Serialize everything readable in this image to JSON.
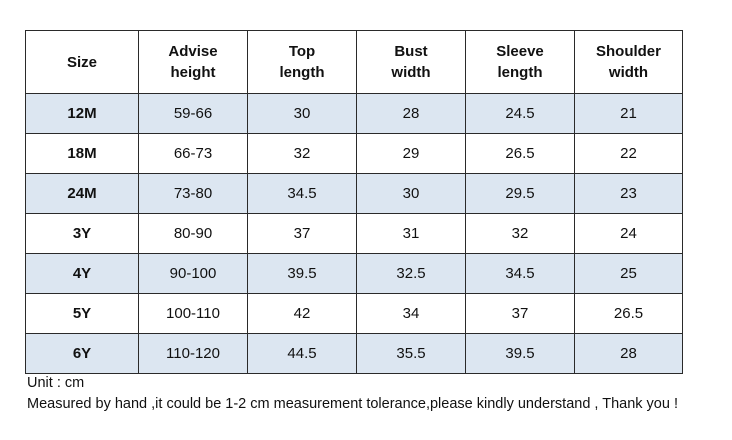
{
  "table": {
    "headers": [
      "Size",
      "Advise height",
      "Top length",
      "Bust width",
      "Sleeve length",
      "Shoulder width"
    ],
    "rows": [
      [
        "12M",
        "59-66",
        "30",
        "28",
        "24.5",
        "21"
      ],
      [
        "18M",
        "66-73",
        "32",
        "29",
        "26.5",
        "22"
      ],
      [
        "24M",
        "73-80",
        "34.5",
        "30",
        "29.5",
        "23"
      ],
      [
        "3Y",
        "80-90",
        "37",
        "31",
        "32",
        "24"
      ],
      [
        "4Y",
        "90-100",
        "39.5",
        "32.5",
        "34.5",
        "25"
      ],
      [
        "5Y",
        "100-110",
        "42",
        "34",
        "37",
        "26.5"
      ],
      [
        "6Y",
        "110-120",
        "44.5",
        "35.5",
        "39.5",
        "28"
      ]
    ]
  },
  "notes": {
    "unit": "Unit : cm",
    "disclaimer": "Measured by hand ,it could be 1-2 cm measurement tolerance,please kindly understand , Thank you !"
  }
}
